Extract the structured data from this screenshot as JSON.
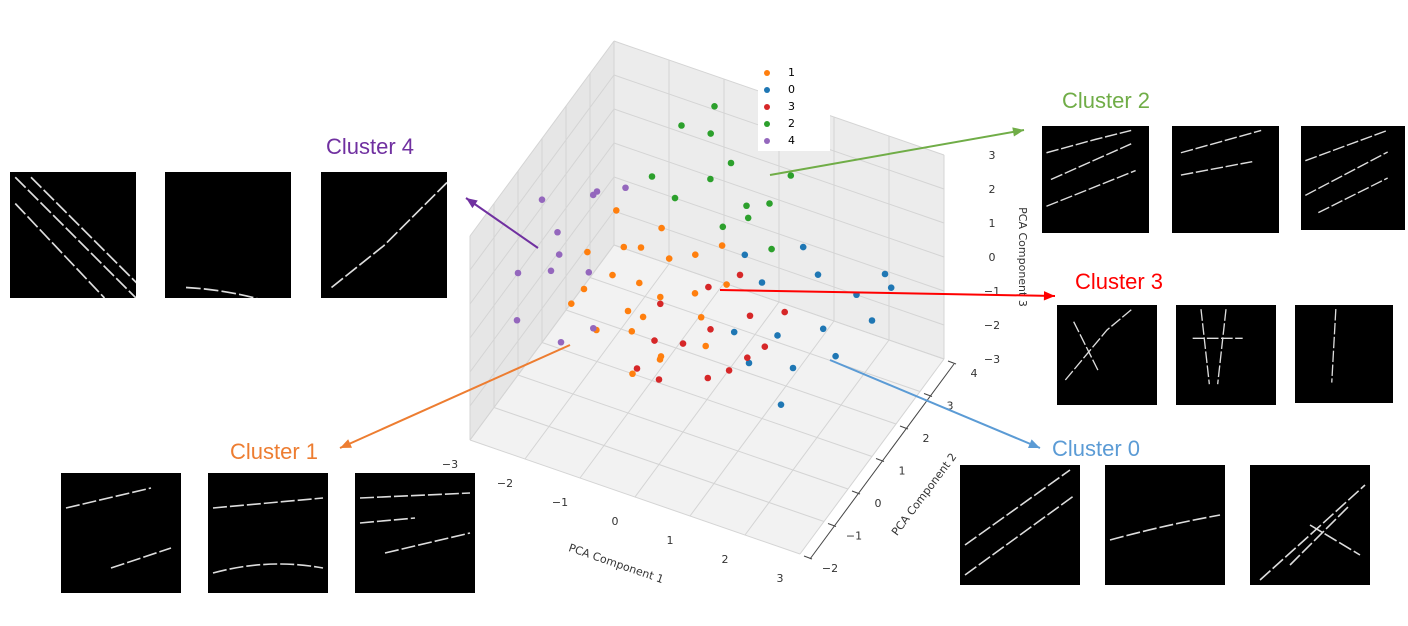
{
  "chart_data": {
    "type": "scatter",
    "projection": "3d",
    "xlabel": "PCA Component 1",
    "ylabel": "PCA Component 2",
    "zlabel": "PCA Component 3",
    "xticks": [
      -3,
      -2,
      -1,
      0,
      1,
      2,
      3
    ],
    "yticks": [
      -2,
      -1,
      0,
      1,
      2,
      3,
      4
    ],
    "zticks": [
      -3,
      -2,
      -1,
      0,
      1,
      2,
      3
    ],
    "xlim": [
      -3,
      3
    ],
    "ylim": [
      -2,
      4
    ],
    "zlim": [
      -3,
      3
    ],
    "grid": true,
    "legend_placement": "top-center",
    "legend_order": [
      "1",
      "0",
      "3",
      "2",
      "4"
    ],
    "series": [
      {
        "name": "1",
        "color": "#ff7f0e",
        "points": [
          [
            -1,
            0,
            0
          ],
          [
            -1.5,
            0.5,
            0.3
          ],
          [
            -0.5,
            0.2,
            0.5
          ],
          [
            -1.2,
            1,
            0.8
          ],
          [
            -0.8,
            -0.3,
            -0.2
          ],
          [
            0,
            0.5,
            0.6
          ],
          [
            -1.8,
            0,
            0.2
          ],
          [
            -0.3,
            1.2,
            0.9
          ],
          [
            0.2,
            0.3,
            0.2
          ],
          [
            -1.4,
            -0.4,
            -0.4
          ],
          [
            -0.6,
            0.8,
            1
          ],
          [
            -2,
            0.6,
            0.6
          ],
          [
            0.4,
            0.9,
            0.7
          ],
          [
            -1,
            1.4,
            1.1
          ],
          [
            -0.2,
            -0.5,
            -0.5
          ],
          [
            -1.6,
            1.2,
            0.4
          ],
          [
            0.5,
            -0.2,
            0
          ],
          [
            -0.9,
            0.4,
            -0.5
          ],
          [
            -1.3,
            0.2,
            2.6
          ],
          [
            -0.4,
            0,
            -1
          ],
          [
            -0.7,
            -0.5,
            -1.2
          ],
          [
            -1.9,
            -0.3,
            0
          ],
          [
            0.1,
            1.4,
            1.2
          ],
          [
            -1.1,
            0.7,
            0.1
          ]
        ]
      },
      {
        "name": "0",
        "color": "#1f77b4",
        "points": [
          [
            2,
            0,
            0
          ],
          [
            1,
            1,
            1
          ],
          [
            3,
            1,
            1
          ],
          [
            1.5,
            0.5,
            0.2
          ],
          [
            2.5,
            1.5,
            1
          ],
          [
            2.2,
            0.8,
            0.5
          ],
          [
            1.2,
            0,
            -0.3
          ],
          [
            2.8,
            2,
            1.3
          ],
          [
            1.8,
            1.5,
            1.2
          ],
          [
            0.8,
            0.3,
            0.1
          ],
          [
            2.6,
            0.4,
            0.3
          ],
          [
            1.4,
            1.8,
            1.5
          ],
          [
            3,
            1.8,
            1.2
          ],
          [
            2,
            -0.5,
            -0.6
          ],
          [
            0.6,
            1.2,
            1.4
          ]
        ]
      },
      {
        "name": "3",
        "color": "#d62728",
        "points": [
          [
            0,
            -1,
            -0.5
          ],
          [
            0.5,
            0,
            0.3
          ],
          [
            1,
            0.5,
            0.5
          ],
          [
            -0.3,
            -0.5,
            0
          ],
          [
            1.3,
            -0.3,
            0.2
          ],
          [
            0.2,
            0.6,
            0.8
          ],
          [
            0.8,
            -0.8,
            -0.2
          ],
          [
            1.5,
            0.8,
            0.6
          ],
          [
            -0.5,
            0.2,
            0.3
          ],
          [
            0.6,
            1,
            1
          ],
          [
            1.1,
            -0.6,
            0
          ],
          [
            0,
            0,
            -0.4
          ],
          [
            -0.4,
            -1,
            -0.4
          ],
          [
            1.4,
            0.2,
            0.1
          ]
        ]
      },
      {
        "name": "2",
        "color": "#2ca02c",
        "points": [
          [
            0,
            2,
            3
          ],
          [
            -1,
            1,
            3
          ],
          [
            -0.3,
            2,
            4.5
          ],
          [
            0.5,
            1.5,
            2.5
          ],
          [
            1,
            2.2,
            3
          ],
          [
            -0.8,
            1.5,
            2
          ],
          [
            0.2,
            1.2,
            2
          ],
          [
            0.8,
            2.5,
            3.5
          ],
          [
            -0.5,
            2.3,
            3.3
          ],
          [
            0.4,
            1.8,
            1.8
          ],
          [
            1,
            1.4,
            1.6
          ],
          [
            -0.2,
            1.6,
            2.8
          ],
          [
            0.7,
            2,
            2.2
          ],
          [
            -0.9,
            2,
            3.6
          ]
        ]
      },
      {
        "name": "4",
        "color": "#9467bd",
        "points": [
          [
            -3,
            0,
            0
          ],
          [
            -2,
            1,
            2
          ],
          [
            -2.5,
            0.5,
            1
          ],
          [
            -2.8,
            -0.5,
            -0.8
          ],
          [
            -1.8,
            0.2,
            0.5
          ],
          [
            -2.2,
            1.3,
            1.5
          ],
          [
            -2.6,
            0.8,
            0
          ],
          [
            -1.5,
            -0.3,
            -0.5
          ],
          [
            -3,
            1,
            1.2
          ],
          [
            -2,
            -0.5,
            -1
          ],
          [
            -2.4,
            0,
            0.4
          ],
          [
            -1.7,
            1.5,
            1.8
          ]
        ]
      }
    ]
  },
  "annotations": [
    {
      "label": "Cluster 4",
      "color": "#7030a0"
    },
    {
      "label": "Cluster 2",
      "color": "#70ad47"
    },
    {
      "label": "Cluster 3",
      "color": "#ff0000"
    },
    {
      "label": "Cluster 0",
      "color": "#5b9bd5"
    },
    {
      "label": "Cluster 1",
      "color": "#ed7d31"
    }
  ]
}
